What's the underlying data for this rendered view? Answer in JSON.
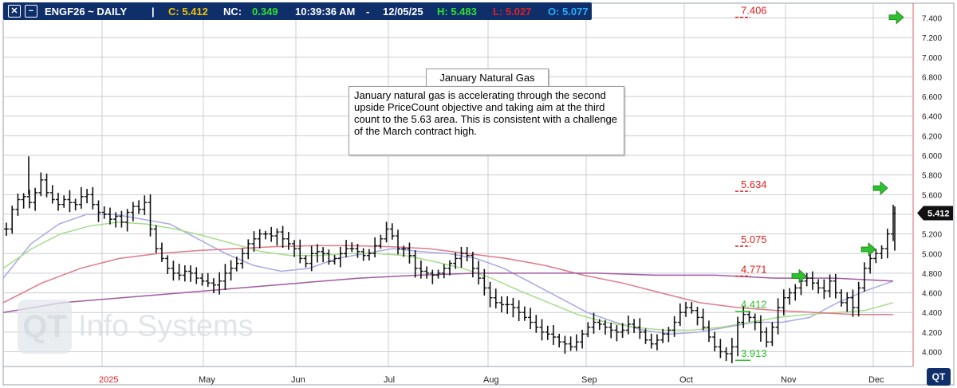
{
  "header": {
    "symbol": "ENGF26 ~ DAILY",
    "sep": "|",
    "close_label": "C: 5.412",
    "nc_label": "NC:",
    "nc_value": "0.349",
    "time": "10:39:36 AM",
    "dash": "-",
    "date": "12/05/25",
    "high_label": "H: 5.483",
    "low_label": "L: 5.027",
    "open_label": "O: 5.077",
    "close_icon": "close-x-icon",
    "minimize_icon": "minimize-icon",
    "colors": {
      "bar": "#0f2f6b",
      "close": "#f2c200",
      "nc": "#2fe22f",
      "high": "#2fe22f",
      "low": "#e02020",
      "open": "#2ab0ff"
    }
  },
  "notes": {
    "title": "January Natural Gas",
    "body": "January natural gas is accelerating through the second upside PriceCount objective and taking aim at the third count to the 5.63 area.  This is consistent with a challenge of the March contract high."
  },
  "watermark": {
    "logo": "QT",
    "text": "Info Systems"
  },
  "corner_logo": "QT",
  "chart_data": {
    "type": "ohlc",
    "price_axis": {
      "ticks": [
        "4.000",
        "4.200",
        "4.400",
        "4.600",
        "4.800",
        "5.000",
        "5.200",
        "5.400",
        "5.600",
        "5.800",
        "6.000",
        "6.200",
        "6.400",
        "6.600",
        "6.800",
        "7.000",
        "7.200",
        "7.400"
      ],
      "min": 3.85,
      "max": 7.55
    },
    "time_axis": {
      "labels": [
        "2025",
        "May",
        "Jun",
        "Jul",
        "Aug",
        "Sep",
        "Oct",
        "Nov",
        "Dec"
      ],
      "year_label_color": "#e02020"
    },
    "last_price_tag": "5.412",
    "grid": true,
    "closes": [
      5.25,
      5.45,
      5.55,
      5.58,
      5.52,
      5.62,
      5.75,
      5.62,
      5.55,
      5.5,
      5.55,
      5.52,
      5.5,
      5.58,
      5.6,
      5.5,
      5.42,
      5.4,
      5.35,
      5.38,
      5.32,
      5.42,
      5.48,
      5.45,
      5.52,
      5.25,
      5.05,
      4.95,
      4.85,
      4.8,
      4.78,
      4.82,
      4.8,
      4.75,
      4.72,
      4.7,
      4.68,
      4.72,
      4.8,
      4.85,
      4.9,
      5.0,
      5.1,
      5.15,
      5.2,
      5.2,
      5.18,
      5.22,
      5.15,
      5.1,
      5.05,
      4.95,
      4.9,
      5.0,
      5.02,
      5.0,
      4.92,
      4.95,
      5.0,
      5.05,
      5.05,
      5.02,
      4.98,
      5.0,
      5.08,
      5.15,
      5.25,
      5.18,
      5.05,
      5.05,
      4.98,
      4.85,
      4.82,
      4.8,
      4.78,
      4.8,
      4.85,
      4.9,
      4.95,
      5.0,
      4.98,
      4.85,
      4.75,
      4.65,
      4.55,
      4.5,
      4.48,
      4.48,
      4.45,
      4.4,
      4.35,
      4.3,
      4.25,
      4.2,
      4.18,
      4.15,
      4.1,
      4.08,
      4.05,
      4.1,
      4.18,
      4.25,
      4.3,
      4.28,
      4.25,
      4.22,
      4.2,
      4.22,
      4.28,
      4.25,
      4.2,
      4.12,
      4.08,
      4.12,
      4.18,
      4.22,
      4.3,
      4.4,
      4.45,
      4.42,
      4.35,
      4.25,
      4.15,
      4.05,
      4.0,
      3.98,
      4.05,
      4.3,
      4.38,
      4.35,
      4.3,
      4.2,
      4.1,
      4.25,
      4.45,
      4.55,
      4.6,
      4.65,
      4.72,
      4.75,
      4.7,
      4.65,
      4.62,
      4.72,
      4.6,
      4.5,
      4.55,
      4.45,
      4.65,
      4.85,
      4.95,
      5.0,
      5.05,
      5.2,
      5.41
    ],
    "moving_averages": [
      {
        "color": "#a8a8e6",
        "values": [
          4.75,
          5.1,
          5.3,
          5.4,
          5.4,
          5.35,
          5.3,
          5.15,
          5.0,
          4.88,
          4.82,
          4.85,
          4.95,
          5.0,
          5.05,
          5.02,
          5.0,
          4.95,
          4.85,
          4.7,
          4.55,
          4.4,
          4.3,
          4.22,
          4.18,
          4.2,
          4.25,
          4.3,
          4.3,
          4.35,
          4.5,
          4.62,
          4.72
        ]
      },
      {
        "color": "#a6dc8a",
        "values": [
          4.85,
          5.05,
          5.2,
          5.28,
          5.32,
          5.3,
          5.25,
          5.18,
          5.1,
          5.02,
          4.98,
          4.98,
          5.0,
          5.0,
          4.98,
          4.92,
          4.85,
          4.75,
          4.62,
          4.5,
          4.38,
          4.3,
          4.25,
          4.22,
          4.22,
          4.25,
          4.3,
          4.35,
          4.38,
          4.4,
          4.42,
          4.5
        ]
      },
      {
        "color": "#e07a8a",
        "values": [
          4.5,
          4.7,
          4.85,
          4.95,
          5.0,
          5.03,
          5.05,
          5.07,
          5.08,
          5.08,
          5.07,
          5.05,
          5.0,
          4.95,
          4.88,
          4.78,
          4.7,
          4.6,
          4.5,
          4.45,
          4.42,
          4.4,
          4.38,
          4.38
        ]
      },
      {
        "color": "#a05aa0",
        "values": [
          4.4,
          4.5,
          4.55,
          4.6,
          4.65,
          4.7,
          4.75,
          4.78,
          4.8,
          4.8,
          4.8,
          4.78,
          4.78,
          4.75,
          4.75,
          4.72
        ]
      }
    ],
    "pricecount_levels": [
      {
        "label": "7.406",
        "value": 7.406,
        "color": "#e02020"
      },
      {
        "label": "5.634",
        "value": 5.634,
        "color": "#e02020"
      },
      {
        "label": "5.075",
        "value": 5.075,
        "color": "#e02020"
      },
      {
        "label": "4.771",
        "value": 4.771,
        "color": "#e02020"
      },
      {
        "label": "4.412",
        "value": 4.412,
        "color": "#2ec02e"
      },
      {
        "label": "3.913",
        "value": 3.913,
        "color": "#2ec02e"
      }
    ],
    "arrow_color": "#2ec02e"
  }
}
